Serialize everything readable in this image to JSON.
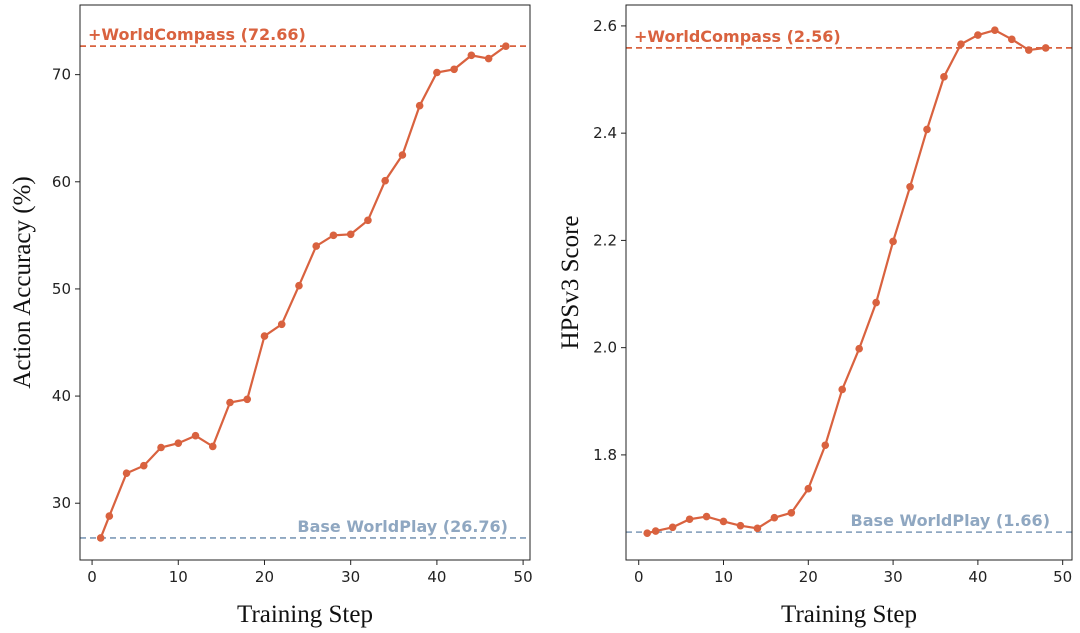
{
  "chart_data": [
    {
      "type": "line",
      "xlabel": "Training Step",
      "ylabel": "Action Accuracy (%)",
      "xlim": [
        -1.4,
        50.8
      ],
      "ylim": [
        24.7,
        76.5
      ],
      "xticks": [
        0,
        10,
        20,
        30,
        40,
        50
      ],
      "yticks": [
        30,
        40,
        50,
        60,
        70
      ],
      "grid": false,
      "series": [
        {
          "name": "WorldCompass",
          "color": "#d9623f",
          "x": [
            1,
            2,
            4,
            6,
            8,
            10,
            12,
            14,
            16,
            18,
            20,
            22,
            24,
            26,
            28,
            30,
            32,
            34,
            36,
            38,
            40,
            42,
            44,
            46,
            48
          ],
          "y": [
            26.76,
            28.8,
            32.8,
            33.5,
            35.2,
            35.6,
            36.3,
            35.3,
            39.4,
            39.7,
            45.6,
            46.7,
            50.3,
            54.0,
            55.0,
            55.1,
            56.4,
            60.1,
            62.5,
            67.1,
            70.2,
            70.5,
            71.8,
            71.5,
            72.66
          ]
        }
      ],
      "reference_lines": [
        {
          "label": "+WorldCompass (72.66)",
          "value": 72.66,
          "color": "#d9623f",
          "position": "top-left"
        },
        {
          "label": "Base WorldPlay (26.76)",
          "value": 26.76,
          "color": "#8fa7c1",
          "position": "bottom-right"
        }
      ]
    },
    {
      "type": "line",
      "xlabel": "Training Step",
      "ylabel": "HPSv3 Score",
      "xlim": [
        -1.5,
        51.1
      ],
      "ylim": [
        1.604,
        2.639
      ],
      "xticks": [
        0,
        10,
        20,
        30,
        40,
        50
      ],
      "yticks": [
        1.8,
        2.0,
        2.2,
        2.4,
        2.6
      ],
      "grid": false,
      "series": [
        {
          "name": "WorldCompass",
          "color": "#d9623f",
          "x": [
            1,
            2,
            4,
            6,
            8,
            10,
            12,
            14,
            16,
            18,
            20,
            22,
            24,
            26,
            28,
            30,
            32,
            34,
            36,
            38,
            40,
            42,
            44,
            46,
            48
          ],
          "y": [
            1.654,
            1.658,
            1.665,
            1.68,
            1.685,
            1.676,
            1.668,
            1.663,
            1.683,
            1.692,
            1.737,
            1.818,
            1.922,
            1.998,
            2.084,
            2.198,
            2.3,
            2.407,
            2.505,
            2.566,
            2.583,
            2.592,
            2.575,
            2.555,
            2.559
          ]
        }
      ],
      "reference_lines": [
        {
          "label": "+WorldCompass (2.56)",
          "value": 2.559,
          "color": "#d9623f",
          "position": "top-left"
        },
        {
          "label": "Base WorldPlay (1.66)",
          "value": 1.656,
          "color": "#8fa7c1",
          "position": "bottom-right"
        }
      ]
    }
  ]
}
